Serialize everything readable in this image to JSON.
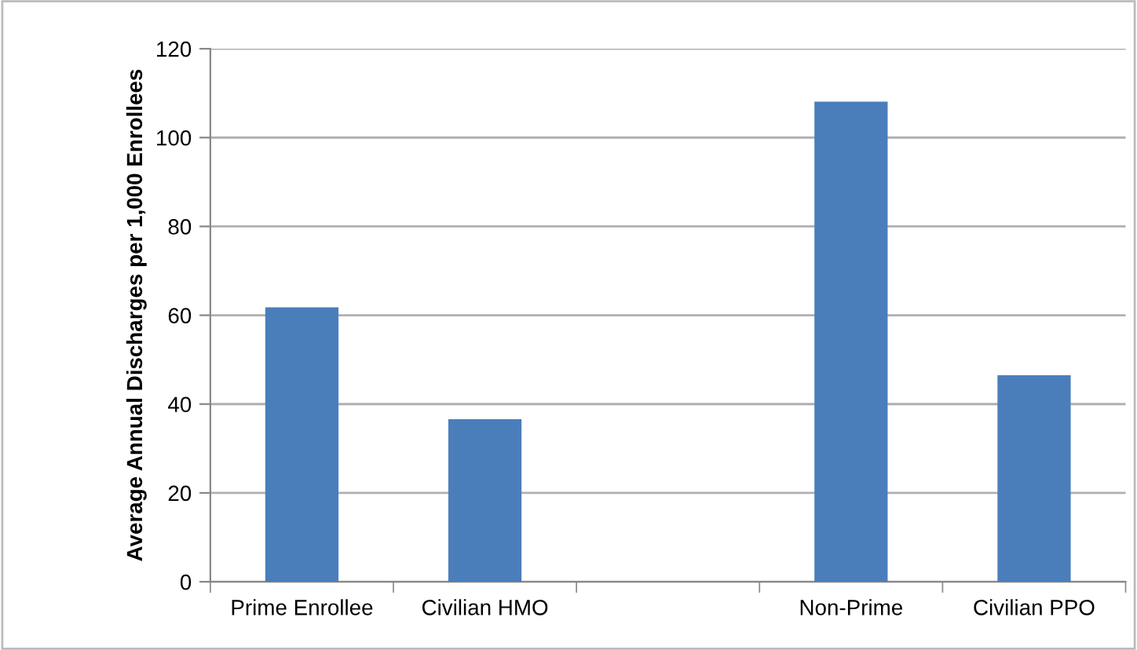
{
  "chart_data": {
    "type": "bar",
    "ylabel": "Average Annual Discharges per 1,000 Enrollees",
    "categories": [
      "Prime Enrollee",
      "Civilian HMO",
      null,
      "Non-Prime",
      "Civilian PPO"
    ],
    "values": [
      61.8,
      36.6,
      null,
      108.1,
      46.5
    ],
    "color": "#4a7ebb",
    "ylim": [
      0,
      120
    ],
    "yticks": [
      0,
      20,
      40,
      60,
      80,
      100,
      120
    ],
    "grid": "y",
    "legend": false
  }
}
